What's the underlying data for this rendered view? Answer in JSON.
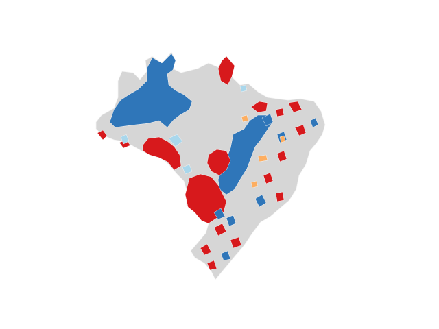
{
  "map": {
    "region": "Brazil",
    "unit": "municipalities",
    "has_title": false,
    "has_legend": false,
    "colors": {
      "background": "#ffffff",
      "base": "#d6d6d6",
      "border": "#f5f5f5",
      "dark_blue": "#2f76b9",
      "light_blue": "#a9d7ec",
      "red": "#d7191c",
      "orange": "#fdae61"
    }
  }
}
